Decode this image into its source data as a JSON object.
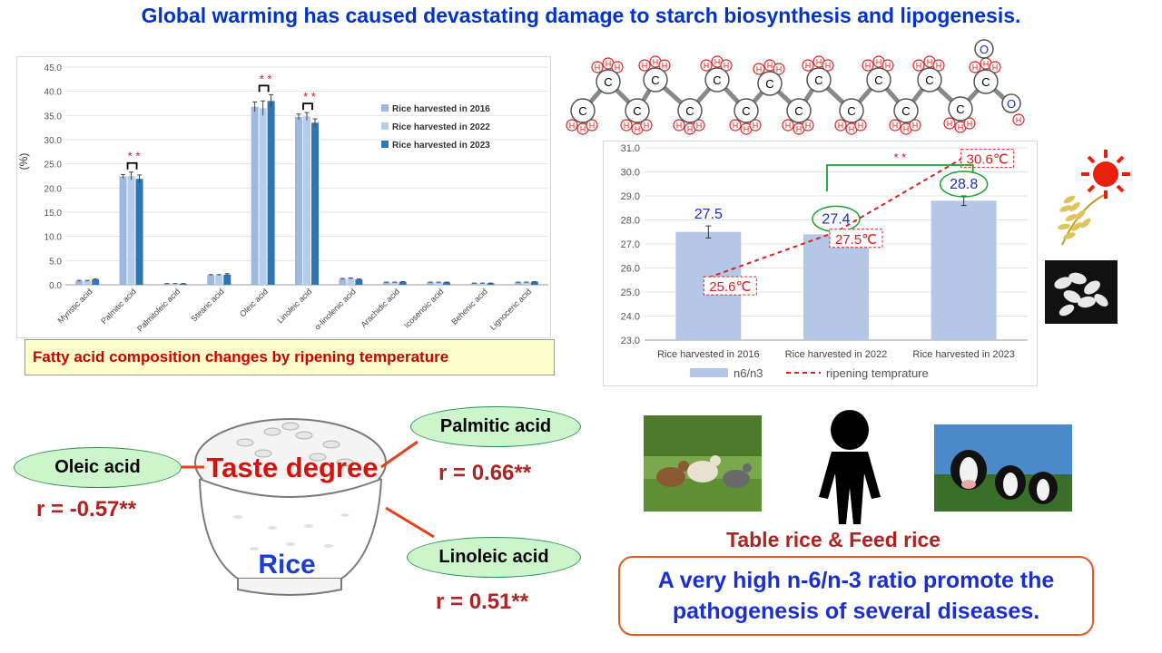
{
  "title": "Global warming has caused devastating damage to starch biosynthesis and lipogenesis.",
  "fatty_chart": {
    "caption": "Fatty acid composition changes by ripening temperature",
    "significance": "* *"
  },
  "ratio_chart": {
    "significance": "* *"
  },
  "taste": {
    "center_label": "Taste degree",
    "bowl_label": "Rice",
    "oleic": {
      "name": "Oleic acid",
      "r": "r = -0.57**"
    },
    "palmitic": {
      "name": "Palmitic acid",
      "r": "r = 0.66**"
    },
    "linoleic": {
      "name": "Linoleic acid",
      "r": "r = 0.51**"
    }
  },
  "molecule": {
    "atom_c": "C",
    "atom_h": "H",
    "atom_o": "O"
  },
  "feed_label": "Table rice & Feed rice",
  "warning": [
    "A very high n-6/n-3 ratio promote the",
    "pathogenesis of several diseases."
  ],
  "chart_data": [
    {
      "type": "bar",
      "title": "",
      "ylabel": "(%)",
      "ylim": [
        0,
        45
      ],
      "yticks": [
        "0.0",
        "5.0",
        "10.0",
        "15.0",
        "20.0",
        "25.0",
        "30.0",
        "35.0",
        "40.0",
        "45.0"
      ],
      "categories": [
        "Myristic acid",
        "Palmitic acid",
        "Palmitoleic acid",
        "Stearic acid",
        "Oleic acid",
        "Linoleic acid",
        "α-linolenic acid",
        "Arachidic acid",
        "Icosenoic acid",
        "Behenic acid",
        "Lignoceric acid"
      ],
      "series": [
        {
          "name": "Rice harvested in 2016",
          "color": "#9db9e0",
          "values": [
            0.8,
            22.4,
            0.2,
            2.0,
            36.8,
            34.7,
            1.2,
            0.5,
            0.5,
            0.3,
            0.5
          ],
          "errors": [
            0.1,
            0.4,
            0.05,
            0.1,
            1.0,
            0.6,
            0.1,
            0.05,
            0.05,
            0.05,
            0.05
          ]
        },
        {
          "name": "Rice harvested in 2022",
          "color": "#b5cdec",
          "values": [
            0.8,
            22.5,
            0.2,
            2.0,
            36.5,
            34.8,
            1.3,
            0.5,
            0.5,
            0.3,
            0.5
          ],
          "errors": [
            0.1,
            0.8,
            0.05,
            0.1,
            1.5,
            0.8,
            0.1,
            0.05,
            0.05,
            0.05,
            0.05
          ]
        },
        {
          "name": "Rice harvested in 2023",
          "color": "#2e75b6",
          "values": [
            1.1,
            21.9,
            0.2,
            2.1,
            38.0,
            33.5,
            1.1,
            0.6,
            0.5,
            0.3,
            0.6
          ],
          "errors": [
            0.1,
            0.8,
            0.05,
            0.2,
            1.3,
            0.8,
            0.1,
            0.05,
            0.05,
            0.05,
            0.05
          ]
        }
      ]
    },
    {
      "type": "bar",
      "title": "",
      "ylim": [
        23.0,
        31.0
      ],
      "yticks": [
        "23.0",
        "24.0",
        "25.0",
        "26.0",
        "27.0",
        "28.0",
        "29.0",
        "30.0",
        "31.0"
      ],
      "categories": [
        "Rice harvested in 2016",
        "Rice harvested in 2022",
        "Rice harvested in 2023"
      ],
      "series": [
        {
          "name": "n6/n3",
          "color": "#b4c7e7",
          "values": [
            27.5,
            27.4,
            28.8
          ],
          "labels": [
            "27.5",
            "27.4",
            "28.8"
          ],
          "errors": [
            0.25,
            0.15,
            0.2
          ]
        },
        {
          "name": "ripening temprature",
          "style": "dashed-line",
          "color": "#e02020",
          "values": [
            25.6,
            27.5,
            30.6
          ],
          "labels": [
            "25.6℃",
            "27.5℃",
            "30.6℃"
          ]
        }
      ],
      "legend": "bottom"
    }
  ]
}
